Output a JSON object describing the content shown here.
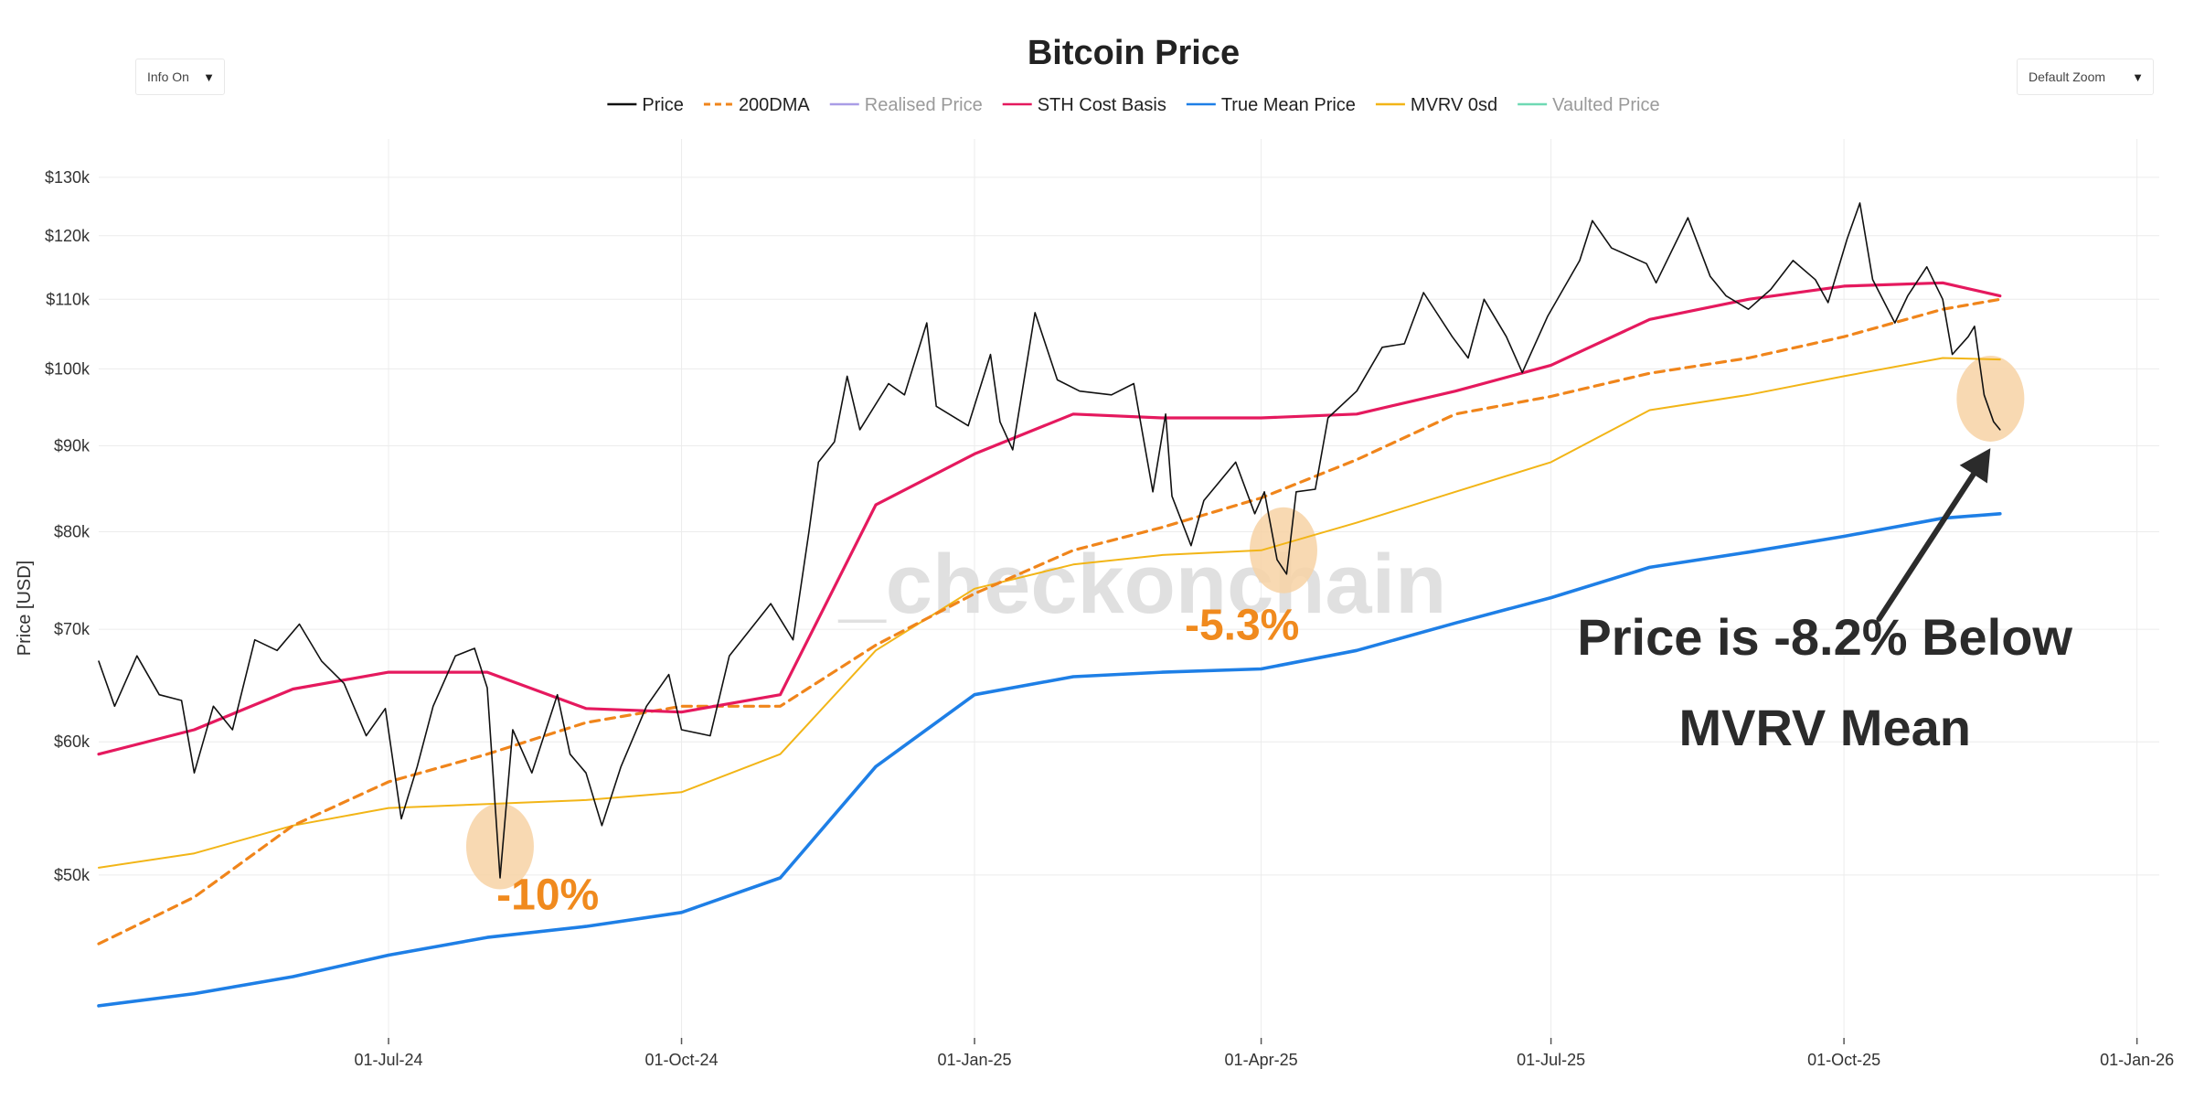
{
  "controls": {
    "info": "Info On",
    "zoom": "Default Zoom",
    "arrow": "▼"
  },
  "colors": {
    "price": "#111111",
    "dma200": "#F0851B",
    "realised": "#A99DE6",
    "sth": "#E5195E",
    "truemean": "#1E7FE6",
    "mvrv": "#F2B517",
    "vaulted": "#6FD9B4",
    "highlight": "#F7D2A4",
    "annotation_orange": "#F08A1E",
    "annotation_dark": "#2B2B2B",
    "grid": "#ECECEC",
    "watermark": "#E0E0E0"
  },
  "chart_data": {
    "type": "line",
    "title": "Bitcoin Price",
    "ylabel": "Price [USD]",
    "xlabel": "",
    "yscale": "log",
    "ylim": [
      40000,
      137000
    ],
    "xlim": [
      "2024-04-01",
      "2026-01-08"
    ],
    "y_ticks": [
      50000,
      60000,
      70000,
      80000,
      90000,
      100000,
      110000,
      120000,
      130000
    ],
    "y_tick_labels": [
      "$50k",
      "$60k",
      "$70k",
      "$80k",
      "$90k",
      "$100k",
      "$110k",
      "$120k",
      "$130k"
    ],
    "x_ticks": [
      "2024-07-01",
      "2024-10-01",
      "2025-01-01",
      "2025-04-01",
      "2025-07-01",
      "2025-10-01",
      "2026-01-01"
    ],
    "x_tick_labels": [
      "01-Jul-24",
      "01-Oct-24",
      "01-Jan-25",
      "01-Apr-25",
      "01-Jul-25",
      "01-Oct-25",
      "01-Jan-26"
    ],
    "legend_position": "top-center",
    "legend": [
      {
        "name": "Price",
        "style": "solid",
        "color_key": "price",
        "faded": false
      },
      {
        "name": "200DMA",
        "style": "dashed",
        "color_key": "dma200",
        "faded": false
      },
      {
        "name": "Realised Price",
        "style": "solid",
        "color_key": "realised",
        "faded": true
      },
      {
        "name": "STH Cost Basis",
        "style": "solid",
        "color_key": "sth",
        "faded": false
      },
      {
        "name": "True Mean Price",
        "style": "solid",
        "color_key": "truemean",
        "faded": false
      },
      {
        "name": "MVRV 0sd",
        "style": "solid",
        "color_key": "mvrv",
        "faded": false
      },
      {
        "name": "Vaulted Price",
        "style": "solid",
        "color_key": "vaulted",
        "faded": true
      }
    ],
    "series": [
      {
        "name": "Price",
        "color_key": "price",
        "width": 1.6,
        "dash": false,
        "points": [
          [
            "2024-04-01",
            67000
          ],
          [
            "2024-04-06",
            63000
          ],
          [
            "2024-04-13",
            67500
          ],
          [
            "2024-04-20",
            64000
          ],
          [
            "2024-04-27",
            63500
          ],
          [
            "2024-05-01",
            57500
          ],
          [
            "2024-05-07",
            63000
          ],
          [
            "2024-05-13",
            61000
          ],
          [
            "2024-05-20",
            69000
          ],
          [
            "2024-05-27",
            68000
          ],
          [
            "2024-06-03",
            70500
          ],
          [
            "2024-06-10",
            67000
          ],
          [
            "2024-06-17",
            65000
          ],
          [
            "2024-06-24",
            60500
          ],
          [
            "2024-06-30",
            62800
          ],
          [
            "2024-07-05",
            54000
          ],
          [
            "2024-07-10",
            58000
          ],
          [
            "2024-07-15",
            63000
          ],
          [
            "2024-07-22",
            67500
          ],
          [
            "2024-07-28",
            68200
          ],
          [
            "2024-08-01",
            64600
          ],
          [
            "2024-08-05",
            49800
          ],
          [
            "2024-08-09",
            61000
          ],
          [
            "2024-08-15",
            57500
          ],
          [
            "2024-08-23",
            64000
          ],
          [
            "2024-08-27",
            59000
          ],
          [
            "2024-09-01",
            57500
          ],
          [
            "2024-09-06",
            53500
          ],
          [
            "2024-09-12",
            58000
          ],
          [
            "2024-09-20",
            63000
          ],
          [
            "2024-09-27",
            65800
          ],
          [
            "2024-10-01",
            61000
          ],
          [
            "2024-10-10",
            60500
          ],
          [
            "2024-10-16",
            67500
          ],
          [
            "2024-10-29",
            72500
          ],
          [
            "2024-11-05",
            69000
          ],
          [
            "2024-11-10",
            80000
          ],
          [
            "2024-11-13",
            88000
          ],
          [
            "2024-11-18",
            90500
          ],
          [
            "2024-11-22",
            99000
          ],
          [
            "2024-11-26",
            92000
          ],
          [
            "2024-12-05",
            98000
          ],
          [
            "2024-12-10",
            96500
          ],
          [
            "2024-12-17",
            106500
          ],
          [
            "2024-12-20",
            95000
          ],
          [
            "2024-12-30",
            92500
          ],
          [
            "2025-01-06",
            102000
          ],
          [
            "2025-01-09",
            93000
          ],
          [
            "2025-01-13",
            89500
          ],
          [
            "2025-01-20",
            108000
          ],
          [
            "2025-01-27",
            98500
          ],
          [
            "2025-02-03",
            97000
          ],
          [
            "2025-02-13",
            96500
          ],
          [
            "2025-02-20",
            98000
          ],
          [
            "2025-02-26",
            84500
          ],
          [
            "2025-03-02",
            94000
          ],
          [
            "2025-03-04",
            84000
          ],
          [
            "2025-03-10",
            78500
          ],
          [
            "2025-03-14",
            83500
          ],
          [
            "2025-03-24",
            88000
          ],
          [
            "2025-03-30",
            82000
          ],
          [
            "2025-04-02",
            84500
          ],
          [
            "2025-04-06",
            77000
          ],
          [
            "2025-04-09",
            75500
          ],
          [
            "2025-04-12",
            84500
          ],
          [
            "2025-04-18",
            84800
          ],
          [
            "2025-04-22",
            93500
          ],
          [
            "2025-05-01",
            97000
          ],
          [
            "2025-05-09",
            103000
          ],
          [
            "2025-05-16",
            103500
          ],
          [
            "2025-05-22",
            111000
          ],
          [
            "2025-05-31",
            104500
          ],
          [
            "2025-06-05",
            101500
          ],
          [
            "2025-06-10",
            110000
          ],
          [
            "2025-06-17",
            104500
          ],
          [
            "2025-06-22",
            99500
          ],
          [
            "2025-06-30",
            107500
          ],
          [
            "2025-07-10",
            116000
          ],
          [
            "2025-07-14",
            122500
          ],
          [
            "2025-07-20",
            118000
          ],
          [
            "2025-07-31",
            115500
          ],
          [
            "2025-08-03",
            112500
          ],
          [
            "2025-08-13",
            123000
          ],
          [
            "2025-08-20",
            113500
          ],
          [
            "2025-08-25",
            110500
          ],
          [
            "2025-09-01",
            108500
          ],
          [
            "2025-09-08",
            111500
          ],
          [
            "2025-09-15",
            116000
          ],
          [
            "2025-09-22",
            113000
          ],
          [
            "2025-09-26",
            109500
          ],
          [
            "2025-10-02",
            119500
          ],
          [
            "2025-10-06",
            125500
          ],
          [
            "2025-10-10",
            113000
          ],
          [
            "2025-10-17",
            106500
          ],
          [
            "2025-10-21",
            110500
          ],
          [
            "2025-10-27",
            115000
          ],
          [
            "2025-11-01",
            110000
          ],
          [
            "2025-11-04",
            102000
          ],
          [
            "2025-11-09",
            104500
          ],
          [
            "2025-11-11",
            106000
          ],
          [
            "2025-11-14",
            96500
          ],
          [
            "2025-11-17",
            93000
          ],
          [
            "2025-11-19",
            92000
          ]
        ]
      },
      {
        "name": "200DMA",
        "color_key": "dma200",
        "width": 3.2,
        "dash": true,
        "points": [
          [
            "2024-04-01",
            45500
          ],
          [
            "2024-05-01",
            48500
          ],
          [
            "2024-06-01",
            53500
          ],
          [
            "2024-07-01",
            56800
          ],
          [
            "2024-08-01",
            59000
          ],
          [
            "2024-09-01",
            61600
          ],
          [
            "2024-10-01",
            63000
          ],
          [
            "2024-11-01",
            63000
          ],
          [
            "2024-12-01",
            68500
          ],
          [
            "2025-01-01",
            73500
          ],
          [
            "2025-02-01",
            78000
          ],
          [
            "2025-03-01",
            80500
          ],
          [
            "2025-04-01",
            83800
          ],
          [
            "2025-05-01",
            88300
          ],
          [
            "2025-06-01",
            94000
          ],
          [
            "2025-07-01",
            96300
          ],
          [
            "2025-08-01",
            99400
          ],
          [
            "2025-09-01",
            101500
          ],
          [
            "2025-10-01",
            104500
          ],
          [
            "2025-11-01",
            108500
          ],
          [
            "2025-11-19",
            110000
          ]
        ]
      },
      {
        "name": "STH Cost Basis",
        "color_key": "sth",
        "width": 3.2,
        "dash": false,
        "points": [
          [
            "2024-04-01",
            59000
          ],
          [
            "2024-05-01",
            61000
          ],
          [
            "2024-06-01",
            64500
          ],
          [
            "2024-07-01",
            66000
          ],
          [
            "2024-08-01",
            66000
          ],
          [
            "2024-09-01",
            62800
          ],
          [
            "2024-10-01",
            62500
          ],
          [
            "2024-11-01",
            64000
          ],
          [
            "2024-12-01",
            83000
          ],
          [
            "2025-01-01",
            89000
          ],
          [
            "2025-02-01",
            94000
          ],
          [
            "2025-03-01",
            93500
          ],
          [
            "2025-04-01",
            93500
          ],
          [
            "2025-05-01",
            94000
          ],
          [
            "2025-06-01",
            97000
          ],
          [
            "2025-07-01",
            100500
          ],
          [
            "2025-08-01",
            107000
          ],
          [
            "2025-09-01",
            110000
          ],
          [
            "2025-10-01",
            112000
          ],
          [
            "2025-11-01",
            112500
          ],
          [
            "2025-11-19",
            110500
          ]
        ]
      },
      {
        "name": "True Mean Price",
        "color_key": "truemean",
        "width": 3.6,
        "dash": false,
        "points": [
          [
            "2024-04-01",
            41800
          ],
          [
            "2024-05-01",
            42500
          ],
          [
            "2024-06-01",
            43500
          ],
          [
            "2024-07-01",
            44800
          ],
          [
            "2024-08-01",
            45900
          ],
          [
            "2024-09-01",
            46600
          ],
          [
            "2024-10-01",
            47500
          ],
          [
            "2024-11-01",
            49800
          ],
          [
            "2024-12-01",
            58000
          ],
          [
            "2025-01-01",
            64000
          ],
          [
            "2025-02-01",
            65600
          ],
          [
            "2025-03-01",
            66000
          ],
          [
            "2025-04-01",
            66300
          ],
          [
            "2025-05-01",
            68000
          ],
          [
            "2025-06-01",
            70600
          ],
          [
            "2025-07-01",
            73100
          ],
          [
            "2025-08-01",
            76200
          ],
          [
            "2025-09-01",
            77800
          ],
          [
            "2025-10-01",
            79500
          ],
          [
            "2025-11-01",
            81500
          ],
          [
            "2025-11-19",
            82000
          ]
        ]
      },
      {
        "name": "MVRV 0sd",
        "color_key": "mvrv",
        "width": 2.0,
        "dash": false,
        "points": [
          [
            "2024-04-01",
            50500
          ],
          [
            "2024-05-01",
            51500
          ],
          [
            "2024-06-01",
            53500
          ],
          [
            "2024-07-01",
            54800
          ],
          [
            "2024-08-01",
            55100
          ],
          [
            "2024-09-01",
            55400
          ],
          [
            "2024-10-01",
            56000
          ],
          [
            "2024-11-01",
            59000
          ],
          [
            "2024-12-01",
            68000
          ],
          [
            "2025-01-01",
            74000
          ],
          [
            "2025-02-01",
            76500
          ],
          [
            "2025-03-01",
            77500
          ],
          [
            "2025-04-01",
            78000
          ],
          [
            "2025-05-01",
            81000
          ],
          [
            "2025-06-01",
            84500
          ],
          [
            "2025-07-01",
            88000
          ],
          [
            "2025-08-01",
            94500
          ],
          [
            "2025-09-01",
            96500
          ],
          [
            "2025-10-01",
            99000
          ],
          [
            "2025-11-01",
            101500
          ],
          [
            "2025-11-19",
            101300
          ]
        ]
      }
    ],
    "annotations": [
      {
        "label": "-10%",
        "x": "2024-08-20",
        "y": 47700,
        "color_key": "annotation_orange",
        "size": 48
      },
      {
        "label": "-5.3%",
        "x": "2025-03-26",
        "y": 69000,
        "color_key": "annotation_orange",
        "size": 48
      },
      {
        "label": "Price is -8.2% Below",
        "x": "2025-09-25",
        "y": 67600,
        "color_key": "annotation_dark",
        "size": 56
      },
      {
        "label": "MVRV Mean",
        "x": "2025-09-25",
        "y": 59700,
        "color_key": "annotation_dark",
        "size": 56
      }
    ],
    "highlights": [
      {
        "x": "2024-08-05",
        "y": 52000
      },
      {
        "x": "2025-04-08",
        "y": 78000
      },
      {
        "x": "2025-11-16",
        "y": 96000
      }
    ],
    "arrow": {
      "from": {
        "x": "2025-10-12",
        "y": 71000
      },
      "to": {
        "x": "2025-11-16",
        "y": 89700
      }
    },
    "watermark": "_checkonchain"
  }
}
